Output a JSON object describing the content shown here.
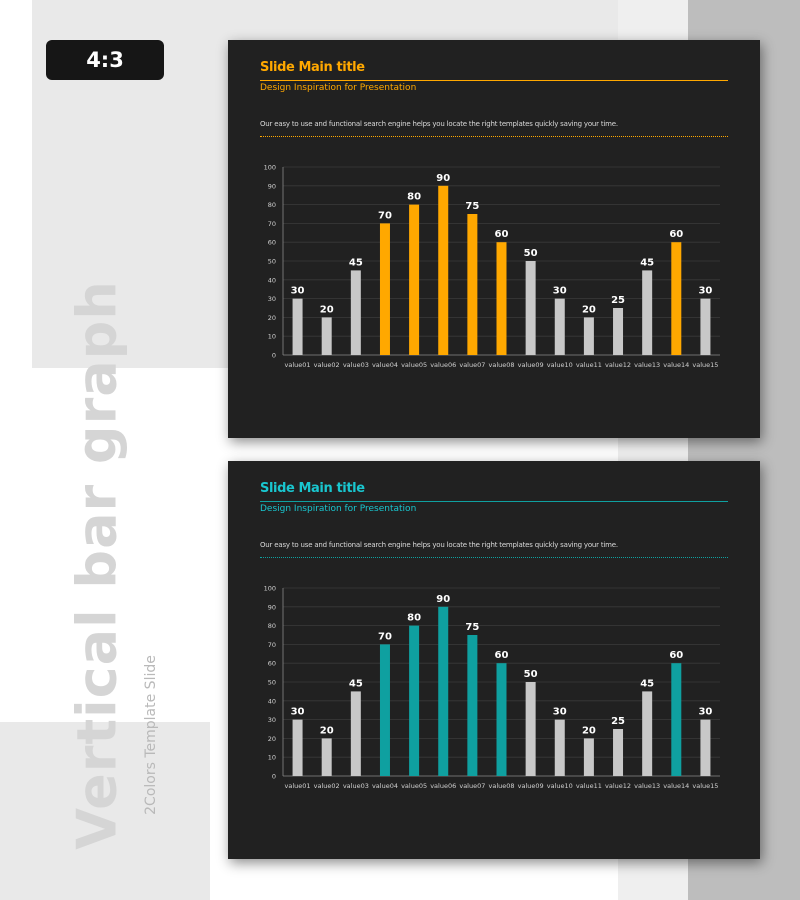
{
  "badge": "4:3",
  "side_title": "Vertical bar graph",
  "side_subtitle": "2Colors Template Slide",
  "colors": {
    "orange": "#ffa800",
    "teal": "#0fa0a0",
    "teal_title": "#19c6cf",
    "gray_bar": "#c8c8c8",
    "slide_bg": "#212121"
  },
  "slides": [
    {
      "title": "Slide Main title",
      "subtitle": "Design Inspiration for Presentation",
      "description": "Our easy to use and functional search engine helps you locate the right templates quickly saving your time.",
      "accent": "#ffa800",
      "title_color": "#ffa800",
      "subtitle_color": "#ffa800"
    },
    {
      "title": "Slide Main title",
      "subtitle": "Design Inspiration for Presentation",
      "description": "Our easy to use and functional search engine helps you locate the right templates quickly saving your time.",
      "accent": "#0fa0a0",
      "title_color": "#19c6cf",
      "subtitle_color": "#19c6cf"
    }
  ],
  "chart_data": [
    {
      "type": "bar",
      "categories": [
        "value01",
        "value02",
        "value03",
        "value04",
        "value05",
        "value06",
        "value07",
        "value08",
        "value09",
        "value10",
        "value11",
        "value12",
        "value13",
        "value14",
        "value15"
      ],
      "values": [
        30,
        20,
        45,
        70,
        80,
        90,
        75,
        60,
        50,
        30,
        20,
        25,
        45,
        60,
        30
      ],
      "highlighted": [
        false,
        false,
        false,
        true,
        true,
        true,
        true,
        true,
        false,
        false,
        false,
        false,
        false,
        true,
        false
      ],
      "highlight_color": "#ffa800",
      "base_color": "#c8c8c8",
      "ylim": [
        0,
        100
      ],
      "yticks": [
        0,
        10,
        20,
        30,
        40,
        50,
        60,
        70,
        80,
        90,
        100
      ],
      "grid": true
    },
    {
      "type": "bar",
      "categories": [
        "value01",
        "value02",
        "value03",
        "value04",
        "value05",
        "value06",
        "value07",
        "value08",
        "value09",
        "value10",
        "value11",
        "value12",
        "value13",
        "value14",
        "value15"
      ],
      "values": [
        30,
        20,
        45,
        70,
        80,
        90,
        75,
        60,
        50,
        30,
        20,
        25,
        45,
        60,
        30
      ],
      "highlighted": [
        false,
        false,
        false,
        true,
        true,
        true,
        true,
        true,
        false,
        false,
        false,
        false,
        false,
        true,
        false
      ],
      "highlight_color": "#0fa0a0",
      "base_color": "#c8c8c8",
      "ylim": [
        0,
        100
      ],
      "yticks": [
        0,
        10,
        20,
        30,
        40,
        50,
        60,
        70,
        80,
        90,
        100
      ],
      "grid": true
    }
  ]
}
